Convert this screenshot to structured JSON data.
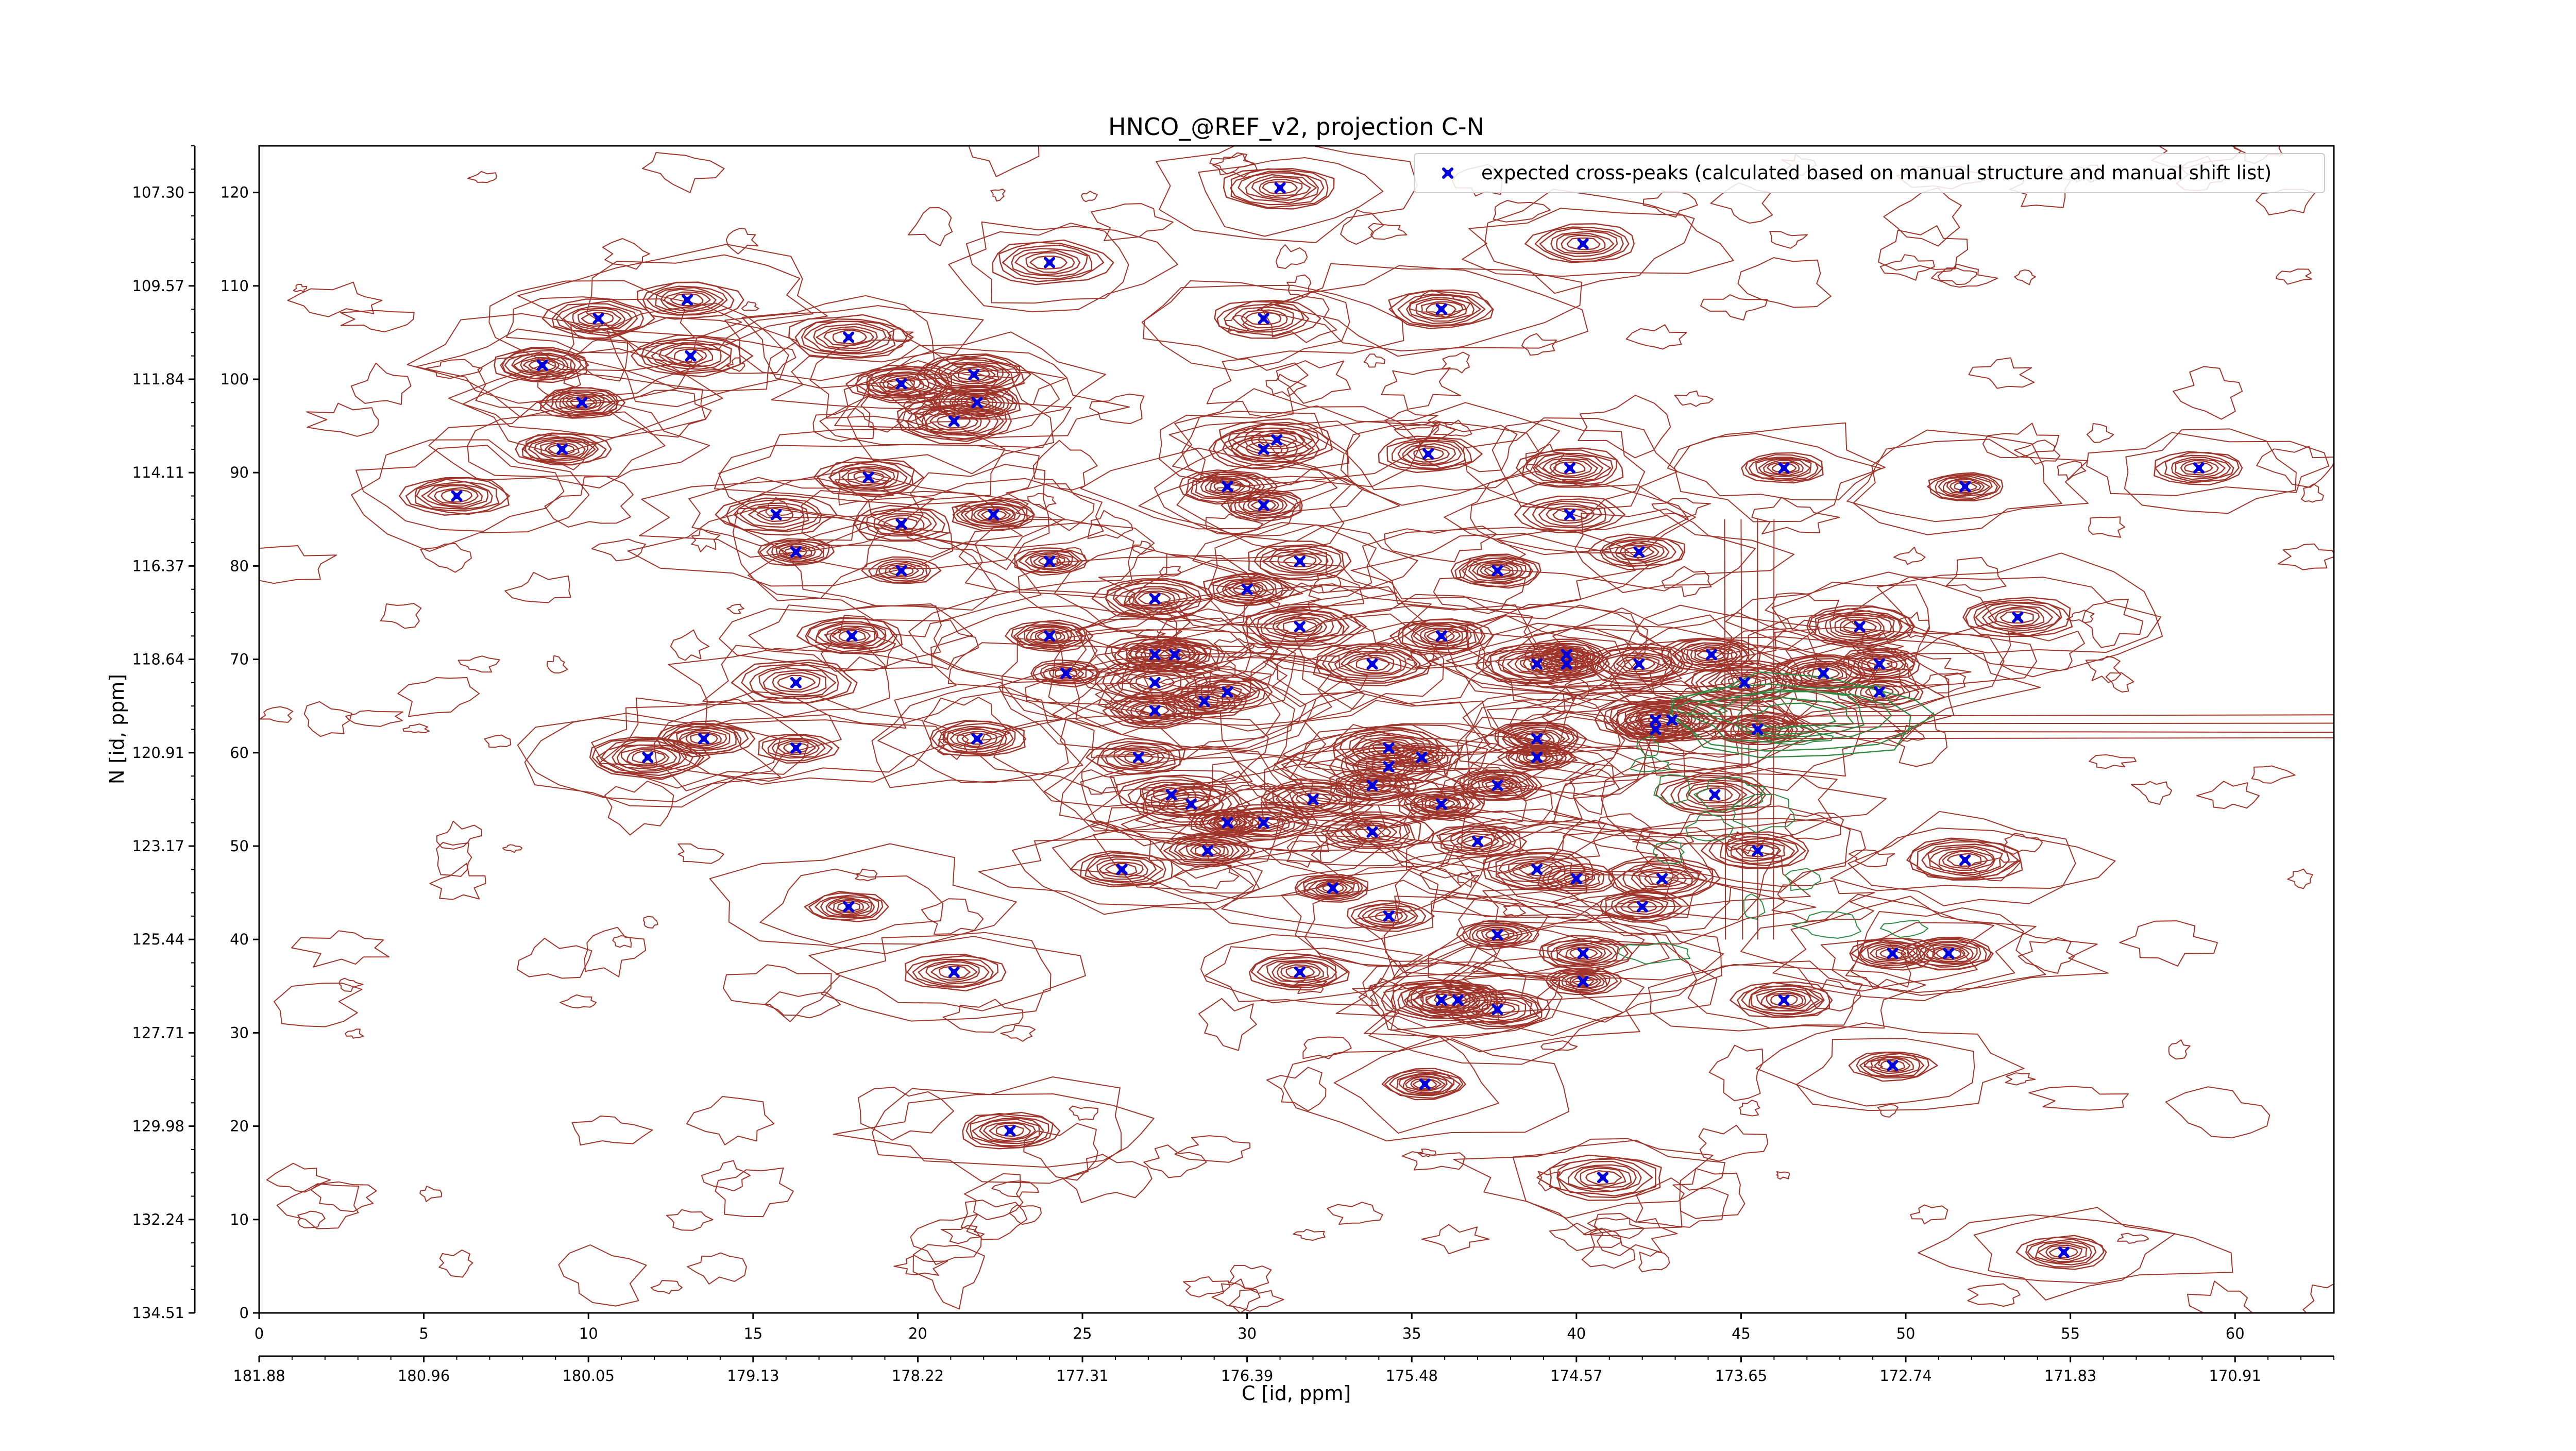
{
  "chart_data": {
    "type": "scatter",
    "title": "HNCO_@REF_v2, projection C-N",
    "xlabel": "C [id, ppm]",
    "ylabel": "N [id, ppm]",
    "xlim": [
      0,
      63
    ],
    "ylim": [
      0,
      125
    ],
    "x_ticks": [
      0,
      5,
      10,
      15,
      20,
      25,
      30,
      35,
      40,
      45,
      50,
      55,
      60
    ],
    "y_ticks": [
      0,
      10,
      20,
      30,
      40,
      50,
      60,
      70,
      80,
      90,
      100,
      110,
      120
    ],
    "x2_tick_labels": [
      "181.88",
      "180.96",
      "180.05",
      "179.13",
      "178.22",
      "177.31",
      "176.39",
      "175.48",
      "174.57",
      "173.65",
      "172.74",
      "171.83",
      "170.91"
    ],
    "y2_tick_labels": [
      "134.51",
      "132.24",
      "129.98",
      "127.71",
      "125.44",
      "123.17",
      "120.91",
      "118.64",
      "116.37",
      "114.11",
      "111.84",
      "109.57",
      "107.30"
    ],
    "legend": {
      "placement": "top-right",
      "label": "expected cross-peaks (calculated based on manual structure and manual shift list)"
    },
    "grid": false,
    "colors": {
      "contour_positive": "#a0352b",
      "contour_negative": "#2e8b43",
      "peaks": "#0000dd"
    },
    "series": [
      {
        "name": "expected cross-peaks (calculated based on manual structure and manual shift list)",
        "points": [
          [
            31,
            120.5
          ],
          [
            40.2,
            114.5
          ],
          [
            24,
            112.5
          ],
          [
            30.5,
            106.5
          ],
          [
            35.9,
            107.5
          ],
          [
            17.9,
            104.5
          ],
          [
            13,
            108.5
          ],
          [
            10.3,
            106.5
          ],
          [
            13.1,
            102.5
          ],
          [
            8.6,
            101.5
          ],
          [
            19.5,
            99.5
          ],
          [
            9.8,
            97.5
          ],
          [
            21.7,
            100.5
          ],
          [
            21.8,
            97.5
          ],
          [
            21.1,
            95.5
          ],
          [
            9.2,
            92.5
          ],
          [
            18.5,
            89.5
          ],
          [
            6,
            87.5
          ],
          [
            15.7,
            85.5
          ],
          [
            19.5,
            84.5
          ],
          [
            22.3,
            85.5
          ],
          [
            24,
            80.5
          ],
          [
            16.3,
            81.5
          ],
          [
            19.5,
            79.5
          ],
          [
            30.5,
            92.5
          ],
          [
            30.9,
            93.5
          ],
          [
            29.4,
            88.5
          ],
          [
            30.5,
            86.5
          ],
          [
            35.5,
            92
          ],
          [
            39.8,
            90.5
          ],
          [
            39.8,
            85.5
          ],
          [
            46.3,
            90.5
          ],
          [
            51.8,
            88.5
          ],
          [
            58.9,
            90.5
          ],
          [
            41.9,
            81.5
          ],
          [
            37.6,
            79.5
          ],
          [
            31.6,
            80.5
          ],
          [
            30,
            77.5
          ],
          [
            27.2,
            76.5
          ],
          [
            18,
            72.5
          ],
          [
            24,
            72.5
          ],
          [
            31.6,
            73.5
          ],
          [
            35.9,
            72.5
          ],
          [
            48.6,
            73.5
          ],
          [
            53.4,
            74.5
          ],
          [
            24.5,
            68.5
          ],
          [
            27.2,
            70.5
          ],
          [
            27.8,
            70.5
          ],
          [
            27.2,
            67.5
          ],
          [
            29.4,
            66.5
          ],
          [
            28.7,
            65.5
          ],
          [
            27.2,
            64.5
          ],
          [
            33.8,
            69.5
          ],
          [
            38.8,
            69.5
          ],
          [
            39.7,
            70.5
          ],
          [
            39.7,
            69.5
          ],
          [
            41.9,
            69.5
          ],
          [
            44.1,
            70.5
          ],
          [
            45.1,
            67.5
          ],
          [
            47.5,
            68.5
          ],
          [
            49.2,
            69.5
          ],
          [
            49.2,
            66.5
          ],
          [
            16.3,
            67.5
          ],
          [
            16.3,
            60.5
          ],
          [
            13.5,
            61.5
          ],
          [
            11.8,
            59.5
          ],
          [
            21.8,
            61.5
          ],
          [
            26.7,
            59.5
          ],
          [
            34.3,
            60.5
          ],
          [
            35.3,
            59.5
          ],
          [
            38.8,
            61.5
          ],
          [
            38.8,
            59.5
          ],
          [
            37.6,
            56.5
          ],
          [
            42.4,
            62.5
          ],
          [
            42.4,
            63.5
          ],
          [
            42.9,
            63.5
          ],
          [
            45.5,
            62.5
          ],
          [
            44.2,
            55.5
          ],
          [
            33.8,
            56.5
          ],
          [
            34.3,
            58.5
          ],
          [
            35.9,
            54.5
          ],
          [
            32,
            55
          ],
          [
            27.7,
            55.5
          ],
          [
            28.3,
            54.5
          ],
          [
            29.4,
            52.5
          ],
          [
            30.5,
            52.5
          ],
          [
            28.8,
            49.5
          ],
          [
            33.8,
            51.5
          ],
          [
            37,
            50.5
          ],
          [
            45.5,
            49.5
          ],
          [
            51.8,
            48.5
          ],
          [
            38.8,
            47.5
          ],
          [
            40,
            46.5
          ],
          [
            42.6,
            46.5
          ],
          [
            26.2,
            47.5
          ],
          [
            32.6,
            45.5
          ],
          [
            34.3,
            42.5
          ],
          [
            37.6,
            40.5
          ],
          [
            42,
            43.5
          ],
          [
            17.9,
            43.5
          ],
          [
            40.2,
            38.5
          ],
          [
            40.2,
            35.5
          ],
          [
            49.6,
            38.5
          ],
          [
            51.3,
            38.5
          ],
          [
            31.6,
            36.5
          ],
          [
            21.1,
            36.5
          ],
          [
            35.9,
            33.5
          ],
          [
            36.4,
            33.5
          ],
          [
            37.6,
            32.5
          ],
          [
            46.3,
            33.5
          ],
          [
            49.6,
            26.5
          ],
          [
            35.4,
            24.5
          ],
          [
            22.8,
            19.5
          ],
          [
            40.8,
            14.5
          ],
          [
            54.8,
            6.5
          ]
        ]
      }
    ]
  }
}
